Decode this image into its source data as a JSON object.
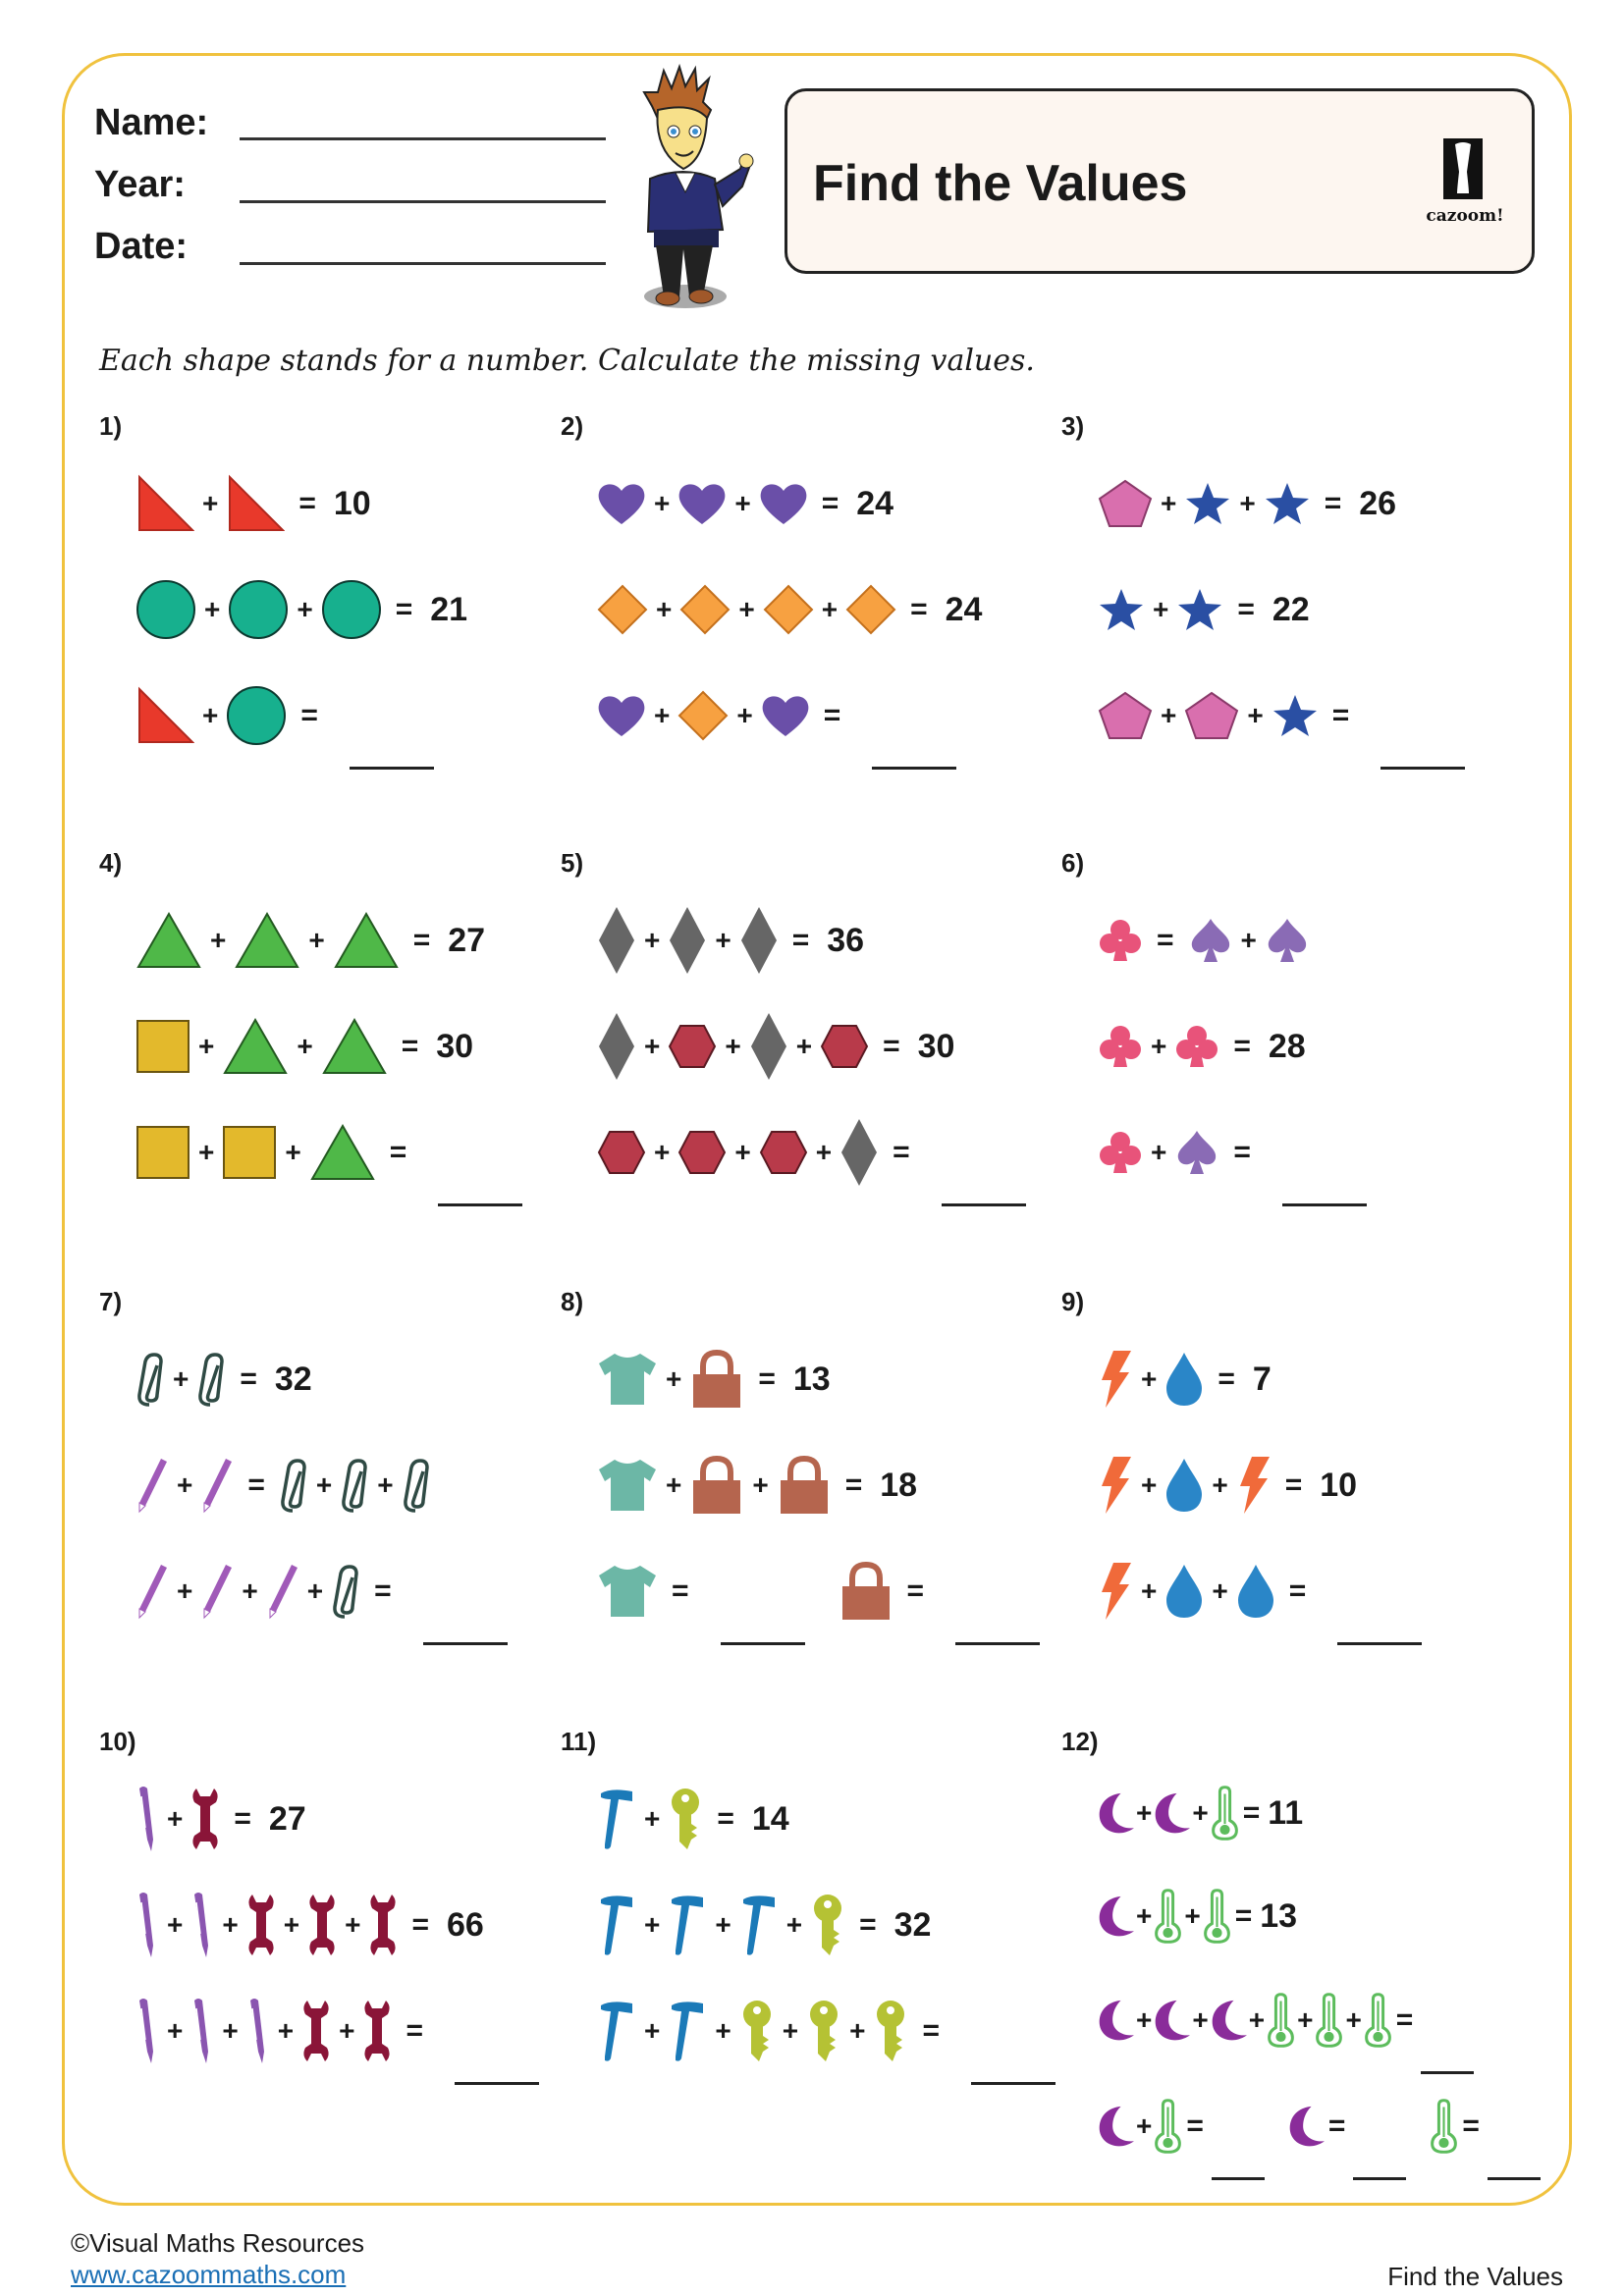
{
  "header": {
    "name_label": "Name:",
    "year_label": "Year:",
    "date_label": "Date:",
    "title": "Find the Values",
    "logo_text": "cazoom!"
  },
  "instructions": "Each shape stands for a number.  Calculate the missing values.",
  "colors": {
    "border": "#f0c23e",
    "title_bg": "#fdf6f0"
  },
  "problems": [
    {
      "label": "1)",
      "lines": [
        [
          "right-triangle",
          "+",
          "right-triangle",
          "=",
          "10"
        ],
        [
          "circle",
          "+",
          "circle",
          "+",
          "circle",
          "=",
          "21"
        ],
        [
          "right-triangle",
          "+",
          "circle",
          "=",
          "_"
        ]
      ]
    },
    {
      "label": "2)",
      "lines": [
        [
          "heart",
          "+",
          "heart",
          "+",
          "heart",
          "=",
          "24"
        ],
        [
          "diamond",
          "+",
          "diamond",
          "+",
          "diamond",
          "+",
          "diamond",
          "=",
          "24"
        ],
        [
          "heart",
          "+",
          "diamond",
          "+",
          "heart",
          "=",
          "_"
        ]
      ]
    },
    {
      "label": "3)",
      "lines": [
        [
          "pentagon",
          "+",
          "star",
          "+",
          "star",
          "=",
          "26"
        ],
        [
          "star",
          "+",
          "star",
          "=",
          "22"
        ],
        [
          "pentagon",
          "+",
          "pentagon",
          "+",
          "star",
          "=",
          "_"
        ]
      ]
    },
    {
      "label": "4)",
      "lines": [
        [
          "triangle",
          "+",
          "triangle",
          "+",
          "triangle",
          "=",
          "27"
        ],
        [
          "square",
          "+",
          "triangle",
          "+",
          "triangle",
          "=",
          "30"
        ],
        [
          "square",
          "+",
          "square",
          "+",
          "triangle",
          "=",
          "_"
        ]
      ]
    },
    {
      "label": "5)",
      "lines": [
        [
          "rhombus",
          "+",
          "rhombus",
          "+",
          "rhombus",
          "=",
          "36"
        ],
        [
          "rhombus",
          "+",
          "hexagon",
          "+",
          "rhombus",
          "+",
          "hexagon",
          "=",
          "30"
        ],
        [
          "hexagon",
          "+",
          "hexagon",
          "+",
          "hexagon",
          "+",
          "rhombus",
          "=",
          "_"
        ]
      ]
    },
    {
      "label": "6)",
      "lines": [
        [
          "club",
          "=",
          "spade",
          "+",
          "spade"
        ],
        [
          "club",
          "+",
          "club",
          "=",
          "28"
        ],
        [
          "club",
          "+",
          "spade",
          "=",
          "_"
        ]
      ]
    },
    {
      "label": "7)",
      "lines": [
        [
          "paperclip",
          "+",
          "paperclip",
          "=",
          "32"
        ],
        [
          "pencil",
          "+",
          "pencil",
          "=",
          "paperclip",
          "+",
          "paperclip",
          "+",
          "paperclip"
        ],
        [
          "pencil",
          "+",
          "pencil",
          "+",
          "pencil",
          "+",
          "paperclip",
          "=",
          "_"
        ]
      ]
    },
    {
      "label": "8)",
      "lines": [
        [
          "tshirt",
          "+",
          "padlock",
          "=",
          "13"
        ],
        [
          "tshirt",
          "+",
          "padlock",
          "+",
          "padlock",
          "=",
          "18"
        ],
        [
          "tshirt",
          "=",
          "_",
          "|",
          "padlock",
          "=",
          "_"
        ]
      ]
    },
    {
      "label": "9)",
      "lines": [
        [
          "lightning",
          "+",
          "drop",
          "=",
          "7"
        ],
        [
          "lightning",
          "+",
          "drop",
          "+",
          "lightning",
          "=",
          "10"
        ],
        [
          "lightning",
          "+",
          "drop",
          "+",
          "drop",
          "=",
          "_"
        ]
      ]
    },
    {
      "label": "10)",
      "lines": [
        [
          "pen",
          "+",
          "wrench",
          "=",
          "27"
        ],
        [
          "pen",
          "+",
          "pen",
          "+",
          "wrench",
          "+",
          "wrench",
          "+",
          "wrench",
          "=",
          "66"
        ],
        [
          "pen",
          "+",
          "pen",
          "+",
          "pen",
          "+",
          "wrench",
          "+",
          "wrench",
          "=",
          "_"
        ]
      ]
    },
    {
      "label": "11)",
      "lines": [
        [
          "hammer",
          "+",
          "key",
          "=",
          "14"
        ],
        [
          "hammer",
          "+",
          "hammer",
          "+",
          "hammer",
          "+",
          "key",
          "=",
          "32"
        ],
        [
          "hammer",
          "+",
          "hammer",
          "+",
          "key",
          "+",
          "key",
          "+",
          "key",
          "=",
          "_"
        ]
      ]
    },
    {
      "label": "12)",
      "lines": [
        [
          "moon",
          "+",
          "moon",
          "+",
          "thermometer",
          "=",
          "11"
        ],
        [
          "moon",
          "+",
          "thermometer",
          "+",
          "thermometer",
          "=",
          "13"
        ],
        [
          "moon",
          "+",
          "moon",
          "+",
          "moon",
          "+",
          "thermometer",
          "+",
          "thermometer",
          "+",
          "thermometer",
          "=",
          "_"
        ],
        [
          "moon",
          "+",
          "thermometer",
          "=",
          "_",
          "|",
          "moon",
          "=",
          "_",
          "|",
          "thermometer",
          "=",
          "_"
        ]
      ]
    }
  ],
  "footer": {
    "copyright": "©Visual Maths Resources",
    "link": "www.cazoommaths.com",
    "right": "Find the Values"
  }
}
